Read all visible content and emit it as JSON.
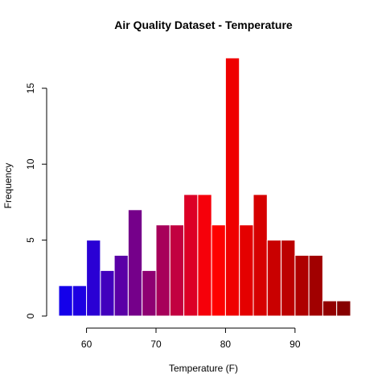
{
  "chart_data": {
    "type": "bar",
    "title": "Air Quality Dataset - Temperature",
    "xlabel": "Temperature (F)",
    "ylabel": "Frequency",
    "xlim": [
      56,
      98
    ],
    "ylim": [
      0,
      17
    ],
    "x_ticks": [
      60,
      70,
      80,
      90
    ],
    "y_ticks": [
      0,
      5,
      10,
      15
    ],
    "grid": false,
    "legend": "none",
    "bins": [
      {
        "from": 56,
        "to": 58,
        "value": 2,
        "color": "#1400ea"
      },
      {
        "from": 58,
        "to": 60,
        "value": 2,
        "color": "#1d00e2"
      },
      {
        "from": 60,
        "to": 62,
        "value": 5,
        "color": "#2a00d4"
      },
      {
        "from": 62,
        "to": 64,
        "value": 3,
        "color": "#4100bd"
      },
      {
        "from": 64,
        "to": 66,
        "value": 4,
        "color": "#5a00a6"
      },
      {
        "from": 66,
        "to": 68,
        "value": 7,
        "color": "#75008a"
      },
      {
        "from": 68,
        "to": 70,
        "value": 3,
        "color": "#8e0072"
      },
      {
        "from": 70,
        "to": 72,
        "value": 6,
        "color": "#a7005a"
      },
      {
        "from": 72,
        "to": 74,
        "value": 6,
        "color": "#c20040"
      },
      {
        "from": 74,
        "to": 76,
        "value": 8,
        "color": "#dc0026"
      },
      {
        "from": 76,
        "to": 78,
        "value": 8,
        "color": "#f6000a"
      },
      {
        "from": 78,
        "to": 80,
        "value": 6,
        "color": "#fe0000"
      },
      {
        "from": 80,
        "to": 82,
        "value": 17,
        "color": "#ef0000"
      },
      {
        "from": 82,
        "to": 84,
        "value": 6,
        "color": "#e40000"
      },
      {
        "from": 84,
        "to": 86,
        "value": 8,
        "color": "#d60000"
      },
      {
        "from": 86,
        "to": 88,
        "value": 5,
        "color": "#c90000"
      },
      {
        "from": 88,
        "to": 90,
        "value": 5,
        "color": "#bc0000"
      },
      {
        "from": 90,
        "to": 92,
        "value": 4,
        "color": "#ae0000"
      },
      {
        "from": 92,
        "to": 94,
        "value": 4,
        "color": "#a10000"
      },
      {
        "from": 94,
        "to": 96,
        "value": 1,
        "color": "#930000"
      },
      {
        "from": 96,
        "to": 98,
        "value": 1,
        "color": "#860000"
      }
    ],
    "bar_border_color": "#ffffff",
    "axis_color": "#000000"
  }
}
